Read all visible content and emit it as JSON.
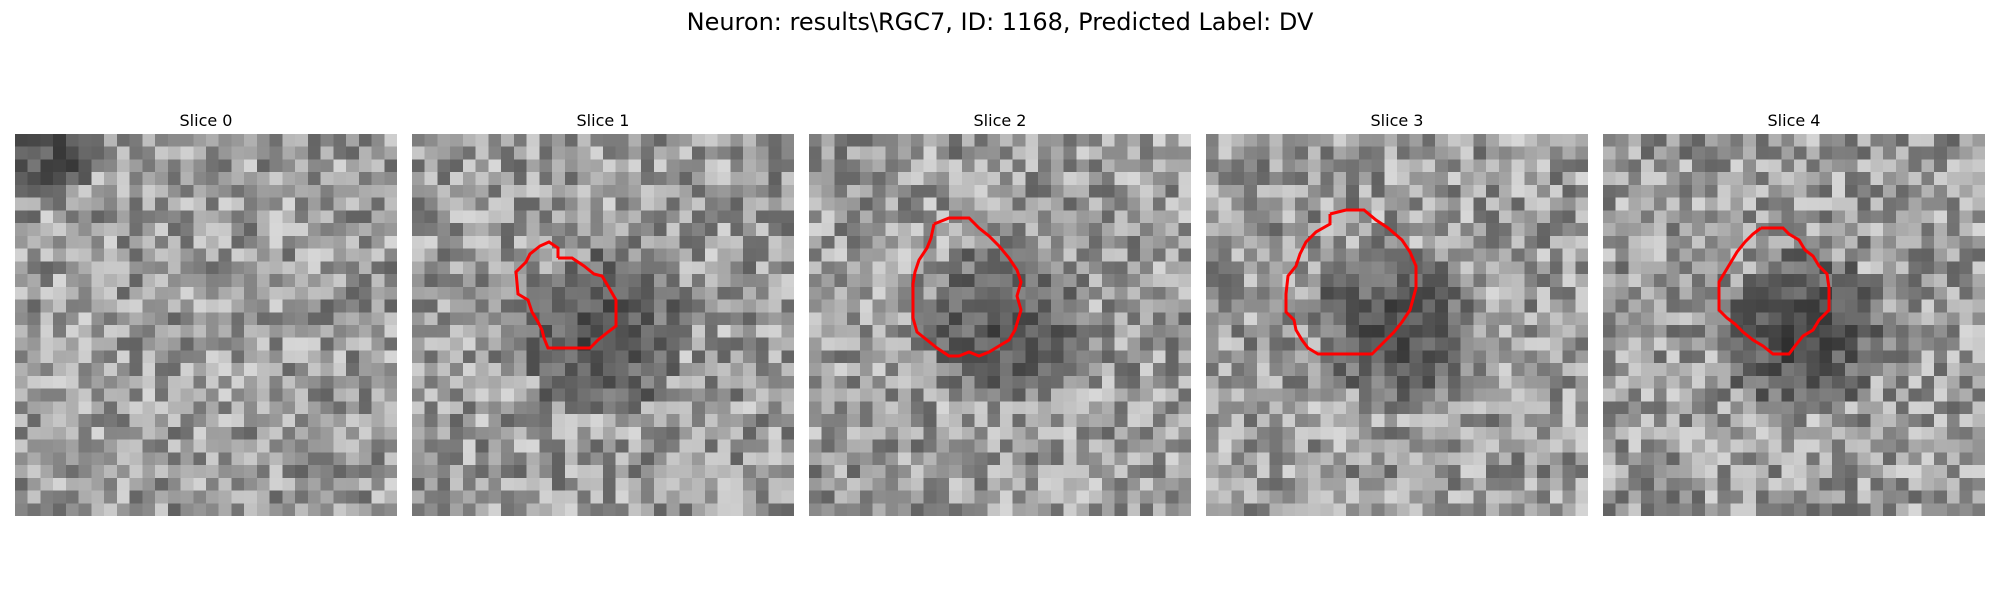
{
  "title": "Neuron: results\\RGC7, ID: 1168, Predicted Label: DV",
  "contour_color": "#ff0000",
  "slices": [
    {
      "label": "Slice 0",
      "has_contour": false,
      "dark_center": null,
      "dark_strength": 0,
      "seed": 11
    },
    {
      "label": "Slice 1",
      "has_contour": true,
      "dark_center": [
        0.5,
        0.53
      ],
      "dark_strength": 0.55,
      "seed": 23
    },
    {
      "label": "Slice 2",
      "has_contour": true,
      "dark_center": [
        0.52,
        0.5
      ],
      "dark_strength": 0.5,
      "seed": 37
    },
    {
      "label": "Slice 3",
      "has_contour": true,
      "dark_center": [
        0.5,
        0.5
      ],
      "dark_strength": 0.55,
      "seed": 51
    },
    {
      "label": "Slice 4",
      "has_contour": true,
      "dark_center": [
        0.52,
        0.52
      ],
      "dark_strength": 0.6,
      "seed": 67
    }
  ]
}
